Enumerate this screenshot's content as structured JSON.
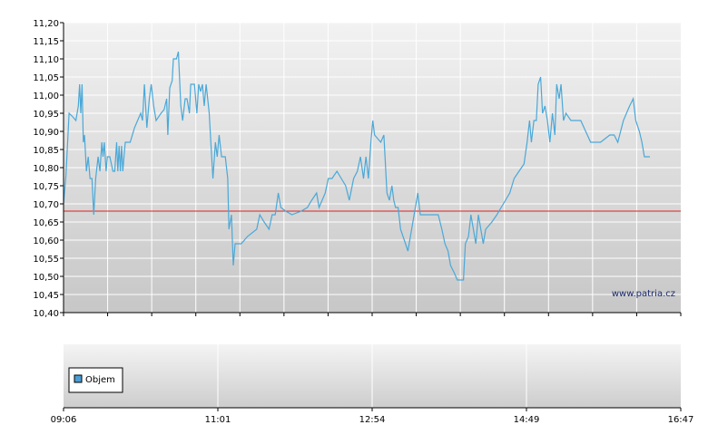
{
  "watermark": "www.patria.cz",
  "legend": {
    "label": "Objem",
    "color": "#4a9ed6"
  },
  "colors": {
    "line": "#4aa8d8",
    "reference_line": "#e02020",
    "axis": "#000000",
    "grid": "#ffffff"
  },
  "chart_data": [
    {
      "type": "line",
      "x_axis": "time",
      "y_ticks": [
        "10,40",
        "10,45",
        "10,50",
        "10,55",
        "10,60",
        "10,65",
        "10,70",
        "10,75",
        "10,80",
        "10,85",
        "10,90",
        "10,95",
        "11,00",
        "11,05",
        "11,10",
        "11,15",
        "11,20"
      ],
      "ylim": [
        10.4,
        11.2
      ],
      "xlim": [
        0,
        1
      ],
      "reference_value": 10.68,
      "series": [
        {
          "values": [
            [
              0.0,
              10.7
            ],
            [
              0.004,
              10.78
            ],
            [
              0.009,
              10.95
            ],
            [
              0.015,
              10.94
            ],
            [
              0.02,
              10.93
            ],
            [
              0.024,
              10.97
            ],
            [
              0.026,
              11.03
            ],
            [
              0.028,
              10.95
            ],
            [
              0.03,
              11.03
            ],
            [
              0.032,
              10.87
            ],
            [
              0.034,
              10.89
            ],
            [
              0.037,
              10.79
            ],
            [
              0.04,
              10.83
            ],
            [
              0.043,
              10.77
            ],
            [
              0.046,
              10.77
            ],
            [
              0.049,
              10.67
            ],
            [
              0.052,
              10.77
            ],
            [
              0.056,
              10.83
            ],
            [
              0.059,
              10.79
            ],
            [
              0.062,
              10.87
            ],
            [
              0.064,
              10.83
            ],
            [
              0.066,
              10.87
            ],
            [
              0.069,
              10.79
            ],
            [
              0.071,
              10.83
            ],
            [
              0.075,
              10.83
            ],
            [
              0.08,
              10.79
            ],
            [
              0.083,
              10.79
            ],
            [
              0.086,
              10.87
            ],
            [
              0.088,
              10.79
            ],
            [
              0.09,
              10.86
            ],
            [
              0.092,
              10.79
            ],
            [
              0.094,
              10.86
            ],
            [
              0.096,
              10.79
            ],
            [
              0.098,
              10.83
            ],
            [
              0.1,
              10.87
            ],
            [
              0.108,
              10.87
            ],
            [
              0.115,
              10.91
            ],
            [
              0.125,
              10.95
            ],
            [
              0.128,
              10.93
            ],
            [
              0.131,
              11.03
            ],
            [
              0.135,
              10.91
            ],
            [
              0.139,
              10.99
            ],
            [
              0.142,
              11.03
            ],
            [
              0.146,
              10.97
            ],
            [
              0.15,
              10.93
            ],
            [
              0.158,
              10.95
            ],
            [
              0.163,
              10.96
            ],
            [
              0.167,
              10.99
            ],
            [
              0.169,
              10.89
            ],
            [
              0.172,
              11.02
            ],
            [
              0.176,
              11.04
            ],
            [
              0.178,
              11.1
            ],
            [
              0.183,
              11.1
            ],
            [
              0.186,
              11.12
            ],
            [
              0.19,
              10.97
            ],
            [
              0.193,
              10.93
            ],
            [
              0.197,
              10.99
            ],
            [
              0.2,
              10.99
            ],
            [
              0.204,
              10.95
            ],
            [
              0.206,
              11.03
            ],
            [
              0.212,
              11.03
            ],
            [
              0.216,
              10.95
            ],
            [
              0.219,
              11.03
            ],
            [
              0.222,
              11.01
            ],
            [
              0.225,
              11.03
            ],
            [
              0.228,
              10.97
            ],
            [
              0.231,
              11.03
            ],
            [
              0.236,
              10.95
            ],
            [
              0.239,
              10.86
            ],
            [
              0.242,
              10.77
            ],
            [
              0.246,
              10.87
            ],
            [
              0.249,
              10.83
            ],
            [
              0.252,
              10.89
            ],
            [
              0.256,
              10.83
            ],
            [
              0.262,
              10.83
            ],
            [
              0.266,
              10.77
            ],
            [
              0.268,
              10.63
            ],
            [
              0.272,
              10.67
            ],
            [
              0.275,
              10.53
            ],
            [
              0.278,
              10.59
            ],
            [
              0.288,
              10.59
            ],
            [
              0.298,
              10.61
            ],
            [
              0.313,
              10.63
            ],
            [
              0.318,
              10.67
            ],
            [
              0.325,
              10.65
            ],
            [
              0.333,
              10.63
            ],
            [
              0.338,
              10.67
            ],
            [
              0.343,
              10.67
            ],
            [
              0.348,
              10.73
            ],
            [
              0.352,
              10.69
            ],
            [
              0.36,
              10.68
            ],
            [
              0.37,
              10.67
            ],
            [
              0.385,
              10.68
            ],
            [
              0.395,
              10.69
            ],
            [
              0.402,
              10.71
            ],
            [
              0.41,
              10.73
            ],
            [
              0.414,
              10.69
            ],
            [
              0.419,
              10.71
            ],
            [
              0.424,
              10.73
            ],
            [
              0.429,
              10.77
            ],
            [
              0.435,
              10.77
            ],
            [
              0.443,
              10.79
            ],
            [
              0.45,
              10.77
            ],
            [
              0.457,
              10.75
            ],
            [
              0.463,
              10.71
            ],
            [
              0.47,
              10.77
            ],
            [
              0.476,
              10.79
            ],
            [
              0.481,
              10.83
            ],
            [
              0.486,
              10.77
            ],
            [
              0.49,
              10.83
            ],
            [
              0.494,
              10.77
            ],
            [
              0.498,
              10.87
            ],
            [
              0.501,
              10.93
            ],
            [
              0.504,
              10.89
            ],
            [
              0.509,
              10.88
            ],
            [
              0.514,
              10.87
            ],
            [
              0.519,
              10.89
            ],
            [
              0.524,
              10.73
            ],
            [
              0.528,
              10.71
            ],
            [
              0.532,
              10.75
            ],
            [
              0.535,
              10.71
            ],
            [
              0.538,
              10.69
            ],
            [
              0.542,
              10.69
            ],
            [
              0.546,
              10.63
            ],
            [
              0.552,
              10.6
            ],
            [
              0.558,
              10.57
            ],
            [
              0.564,
              10.63
            ],
            [
              0.57,
              10.69
            ],
            [
              0.574,
              10.73
            ],
            [
              0.578,
              10.67
            ],
            [
              0.59,
              10.67
            ],
            [
              0.6,
              10.67
            ],
            [
              0.607,
              10.67
            ],
            [
              0.613,
              10.63
            ],
            [
              0.618,
              10.59
            ],
            [
              0.623,
              10.57
            ],
            [
              0.627,
              10.53
            ],
            [
              0.633,
              10.51
            ],
            [
              0.638,
              10.49
            ],
            [
              0.648,
              10.49
            ],
            [
              0.651,
              10.59
            ],
            [
              0.656,
              10.61
            ],
            [
              0.66,
              10.67
            ],
            [
              0.664,
              10.63
            ],
            [
              0.668,
              10.59
            ],
            [
              0.672,
              10.67
            ],
            [
              0.676,
              10.63
            ],
            [
              0.68,
              10.59
            ],
            [
              0.684,
              10.63
            ],
            [
              0.694,
              10.65
            ],
            [
              0.702,
              10.67
            ],
            [
              0.709,
              10.69
            ],
            [
              0.716,
              10.71
            ],
            [
              0.723,
              10.73
            ],
            [
              0.73,
              10.77
            ],
            [
              0.738,
              10.79
            ],
            [
              0.746,
              10.81
            ],
            [
              0.751,
              10.87
            ],
            [
              0.755,
              10.93
            ],
            [
              0.758,
              10.87
            ],
            [
              0.762,
              10.93
            ],
            [
              0.766,
              10.93
            ],
            [
              0.769,
              11.03
            ],
            [
              0.773,
              11.05
            ],
            [
              0.776,
              10.95
            ],
            [
              0.78,
              10.97
            ],
            [
              0.784,
              10.93
            ],
            [
              0.788,
              10.87
            ],
            [
              0.792,
              10.95
            ],
            [
              0.796,
              10.89
            ],
            [
              0.799,
              11.03
            ],
            [
              0.803,
              10.99
            ],
            [
              0.806,
              11.03
            ],
            [
              0.81,
              10.93
            ],
            [
              0.814,
              10.95
            ],
            [
              0.822,
              10.93
            ],
            [
              0.838,
              10.93
            ],
            [
              0.854,
              10.87
            ],
            [
              0.87,
              10.87
            ],
            [
              0.885,
              10.89
            ],
            [
              0.892,
              10.89
            ],
            [
              0.898,
              10.87
            ],
            [
              0.907,
              10.93
            ],
            [
              0.917,
              10.97
            ],
            [
              0.923,
              10.99
            ],
            [
              0.927,
              10.93
            ],
            [
              0.933,
              10.9
            ],
            [
              0.937,
              10.87
            ],
            [
              0.941,
              10.83
            ],
            [
              0.95,
              10.83
            ]
          ]
        }
      ]
    },
    {
      "type": "bar",
      "name": "volume-panel",
      "x_ticks": [
        "09:06",
        "11:01",
        "12:54",
        "14:49",
        "16:47"
      ],
      "legend": [
        "Objem"
      ],
      "series": []
    }
  ]
}
